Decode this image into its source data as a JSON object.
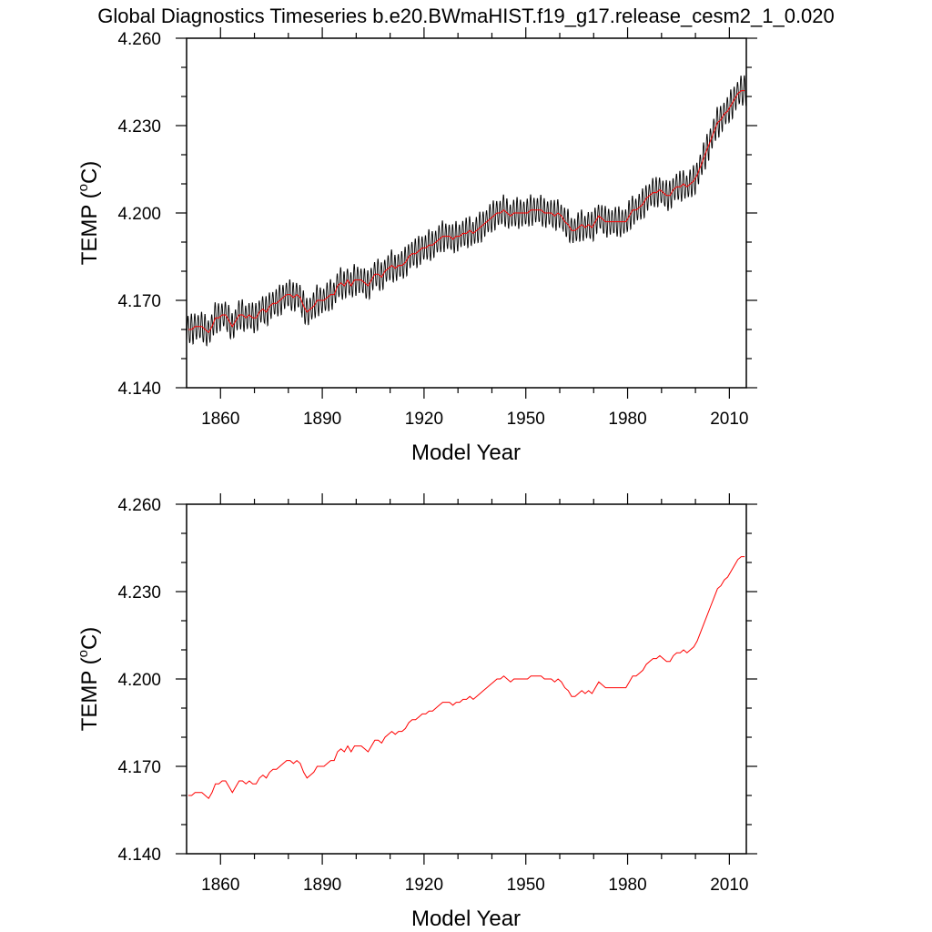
{
  "figure": {
    "title": "Global Diagnostics Timeseries b.e20.BWmaHIST.f19_g17.release_cesm2_1_0.020"
  },
  "colors": {
    "monthly": "#000000",
    "annual": "#ff0000",
    "axis": "#000000"
  },
  "chart_data": [
    {
      "type": "line",
      "title": "",
      "xlabel": "Model Year",
      "ylabel": "TEMP (",
      "ylabel_unit": "o",
      "ylabel_tail": "C)",
      "xlim": [
        1850,
        2015
      ],
      "ylim": [
        4.14,
        4.26
      ],
      "xticks": [
        1860,
        1890,
        1920,
        1950,
        1980,
        2010
      ],
      "yticks": [
        "4.140",
        "4.170",
        "4.200",
        "4.230",
        "4.260"
      ],
      "series": [
        {
          "name": "monthly",
          "color": "#000000",
          "seasonal_amplitude": 0.0055,
          "note": "monthly values oscillate around the annual mean with approx. this half-amplitude"
        },
        {
          "name": "annual",
          "color": "#ff0000",
          "x": [
            1850,
            1851,
            1852,
            1853,
            1854,
            1855,
            1856,
            1857,
            1858,
            1859,
            1860,
            1861,
            1862,
            1863,
            1864,
            1865,
            1866,
            1867,
            1868,
            1869,
            1870,
            1871,
            1872,
            1873,
            1874,
            1875,
            1876,
            1877,
            1878,
            1879,
            1880,
            1881,
            1882,
            1883,
            1884,
            1885,
            1886,
            1887,
            1888,
            1889,
            1890,
            1891,
            1892,
            1893,
            1894,
            1895,
            1896,
            1897,
            1898,
            1899,
            1900,
            1901,
            1902,
            1903,
            1904,
            1905,
            1906,
            1907,
            1908,
            1909,
            1910,
            1911,
            1912,
            1913,
            1914,
            1915,
            1916,
            1917,
            1918,
            1919,
            1920,
            1921,
            1922,
            1923,
            1924,
            1925,
            1926,
            1927,
            1928,
            1929,
            1930,
            1931,
            1932,
            1933,
            1934,
            1935,
            1936,
            1937,
            1938,
            1939,
            1940,
            1941,
            1942,
            1943,
            1944,
            1945,
            1946,
            1947,
            1948,
            1949,
            1950,
            1951,
            1952,
            1953,
            1954,
            1955,
            1956,
            1957,
            1958,
            1959,
            1960,
            1961,
            1962,
            1963,
            1964,
            1965,
            1966,
            1967,
            1968,
            1969,
            1970,
            1971,
            1972,
            1973,
            1974,
            1975,
            1976,
            1977,
            1978,
            1979,
            1980,
            1981,
            1982,
            1983,
            1984,
            1985,
            1986,
            1987,
            1988,
            1989,
            1990,
            1991,
            1992,
            1993,
            1994,
            1995,
            1996,
            1997,
            1998,
            1999,
            2000,
            2001,
            2002,
            2003,
            2004,
            2005,
            2006,
            2007,
            2008,
            2009,
            2010,
            2011,
            2012,
            2013,
            2014
          ],
          "values": [
            4.16,
            4.16,
            4.161,
            4.161,
            4.161,
            4.16,
            4.159,
            4.161,
            4.164,
            4.164,
            4.165,
            4.165,
            4.163,
            4.161,
            4.163,
            4.165,
            4.165,
            4.164,
            4.165,
            4.164,
            4.164,
            4.166,
            4.167,
            4.166,
            4.168,
            4.169,
            4.169,
            4.17,
            4.171,
            4.172,
            4.172,
            4.171,
            4.172,
            4.171,
            4.168,
            4.166,
            4.167,
            4.168,
            4.17,
            4.17,
            4.17,
            4.171,
            4.172,
            4.172,
            4.175,
            4.176,
            4.175,
            4.177,
            4.175,
            4.177,
            4.177,
            4.177,
            4.176,
            4.175,
            4.177,
            4.179,
            4.179,
            4.178,
            4.18,
            4.181,
            4.182,
            4.181,
            4.182,
            4.182,
            4.183,
            4.185,
            4.186,
            4.186,
            4.187,
            4.188,
            4.188,
            4.189,
            4.189,
            4.19,
            4.191,
            4.192,
            4.192,
            4.192,
            4.191,
            4.192,
            4.192,
            4.193,
            4.193,
            4.194,
            4.193,
            4.194,
            4.195,
            4.196,
            4.197,
            4.198,
            4.199,
            4.2,
            4.2,
            4.201,
            4.2,
            4.199,
            4.2,
            4.2,
            4.2,
            4.2,
            4.2,
            4.201,
            4.201,
            4.201,
            4.201,
            4.2,
            4.2,
            4.2,
            4.199,
            4.2,
            4.199,
            4.197,
            4.196,
            4.194,
            4.194,
            4.195,
            4.196,
            4.195,
            4.196,
            4.195,
            4.197,
            4.199,
            4.198,
            4.197,
            4.197,
            4.197,
            4.197,
            4.197,
            4.197,
            4.197,
            4.199,
            4.201,
            4.201,
            4.202,
            4.203,
            4.205,
            4.206,
            4.207,
            4.207,
            4.208,
            4.207,
            4.206,
            4.206,
            4.208,
            4.209,
            4.209,
            4.21,
            4.209,
            4.21,
            4.211,
            4.213,
            4.216,
            4.219,
            4.222,
            4.225,
            4.228,
            4.231,
            4.232,
            4.234,
            4.235,
            4.237,
            4.239,
            4.241,
            4.242,
            4.242
          ]
        }
      ]
    },
    {
      "type": "line",
      "title": "",
      "xlabel": "Model Year",
      "ylabel": "TEMP (",
      "ylabel_unit": "o",
      "ylabel_tail": "C)",
      "xlim": [
        1850,
        2015
      ],
      "ylim": [
        4.14,
        4.26
      ],
      "xticks": [
        1860,
        1890,
        1920,
        1950,
        1980,
        2010
      ],
      "yticks": [
        "4.140",
        "4.170",
        "4.200",
        "4.230",
        "4.260"
      ],
      "series": [
        {
          "name": "annual",
          "color": "#ff0000",
          "same_as_panel": 0
        }
      ]
    }
  ]
}
